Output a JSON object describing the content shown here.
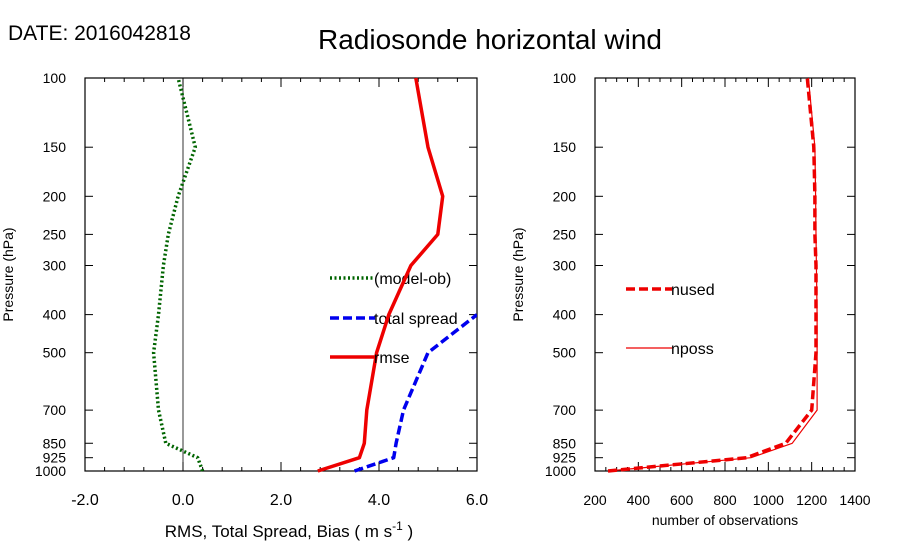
{
  "header": {
    "date_label": "DATE: 2016042818",
    "title": "Radiosonde horizontal wind"
  },
  "chart_data": [
    {
      "type": "line",
      "panel": "left",
      "xlabel_prefix": "RMS, Total Spread, Bias ( m s",
      "xlabel_exp": "-1",
      "xlabel_suffix": " )",
      "ylabel": "Pressure (hPa)",
      "xlim": [
        -2.0,
        6.0
      ],
      "x_ticks": [
        -2.0,
        0.0,
        2.0,
        4.0,
        6.0
      ],
      "x_tick_labels": [
        "-2.0",
        "0.0",
        "2.0",
        "4.0",
        "6.0"
      ],
      "ylim": [
        1000,
        100
      ],
      "y_scale": "log",
      "y_ticks": [
        100,
        150,
        200,
        250,
        300,
        400,
        500,
        700,
        850,
        925,
        1000
      ],
      "y_tick_labels": [
        "100",
        "150",
        "200",
        "250",
        "300",
        "400",
        "500",
        "700",
        "850",
        "925",
        "1000"
      ],
      "zero_line": 0,
      "legend_placement": "center-right",
      "series": [
        {
          "name": "(model-ob)",
          "color": "#006400",
          "style": "dotted",
          "points": [
            [
              0.4,
              1000
            ],
            [
              0.3,
              925
            ],
            [
              -0.35,
              850
            ],
            [
              -0.5,
              700
            ],
            [
              -0.6,
              500
            ],
            [
              -0.5,
              400
            ],
            [
              -0.4,
              300
            ],
            [
              -0.3,
              250
            ],
            [
              -0.1,
              200
            ],
            [
              0.25,
              150
            ],
            [
              -0.1,
              100
            ]
          ]
        },
        {
          "name": "total spread",
          "color": "#0000ee",
          "style": "dashed",
          "points": [
            [
              3.5,
              1000
            ],
            [
              4.3,
              925
            ],
            [
              4.35,
              850
            ],
            [
              4.5,
              700
            ],
            [
              5.0,
              500
            ],
            [
              6.0,
              400
            ]
          ]
        },
        {
          "name": "rmse",
          "color": "#ee0000",
          "style": "solid",
          "points": [
            [
              2.75,
              1000
            ],
            [
              3.6,
              925
            ],
            [
              3.7,
              850
            ],
            [
              3.75,
              700
            ],
            [
              3.95,
              500
            ],
            [
              4.2,
              400
            ],
            [
              4.65,
              300
            ],
            [
              5.2,
              250
            ],
            [
              5.3,
              200
            ],
            [
              5.0,
              150
            ],
            [
              4.75,
              100
            ]
          ]
        }
      ]
    },
    {
      "type": "line",
      "panel": "right",
      "xlabel": "number of observations",
      "ylabel": "Pressure (hPa)",
      "xlim": [
        200,
        1400
      ],
      "x_ticks": [
        200,
        400,
        600,
        800,
        1000,
        1200,
        1400
      ],
      "x_tick_labels": [
        "200",
        "400",
        "600",
        "800",
        "1000",
        "1200",
        "1400"
      ],
      "ylim": [
        1000,
        100
      ],
      "y_scale": "log",
      "y_ticks": [
        100,
        150,
        200,
        250,
        300,
        400,
        500,
        700,
        850,
        925,
        1000
      ],
      "y_tick_labels": [
        "100",
        "150",
        "200",
        "250",
        "300",
        "400",
        "500",
        "700",
        "850",
        "925",
        "1000"
      ],
      "legend_placement": "center-left",
      "series": [
        {
          "name": "nused",
          "color": "#ee0000",
          "style": "dashed",
          "points": [
            [
              260,
              1000
            ],
            [
              900,
              925
            ],
            [
              1080,
              850
            ],
            [
              1200,
              700
            ],
            [
              1220,
              500
            ],
            [
              1220,
              400
            ],
            [
              1220,
              300
            ],
            [
              1215,
              250
            ],
            [
              1215,
              200
            ],
            [
              1210,
              150
            ],
            [
              1180,
              100
            ]
          ]
        },
        {
          "name": "nposs",
          "color": "#ee0000",
          "style": "thin",
          "points": [
            [
              260,
              1000
            ],
            [
              920,
              925
            ],
            [
              1110,
              850
            ],
            [
              1225,
              700
            ],
            [
              1225,
              500
            ],
            [
              1225,
              400
            ],
            [
              1222,
              300
            ],
            [
              1220,
              250
            ],
            [
              1218,
              200
            ],
            [
              1215,
              150
            ],
            [
              1185,
              100
            ]
          ]
        }
      ]
    }
  ]
}
